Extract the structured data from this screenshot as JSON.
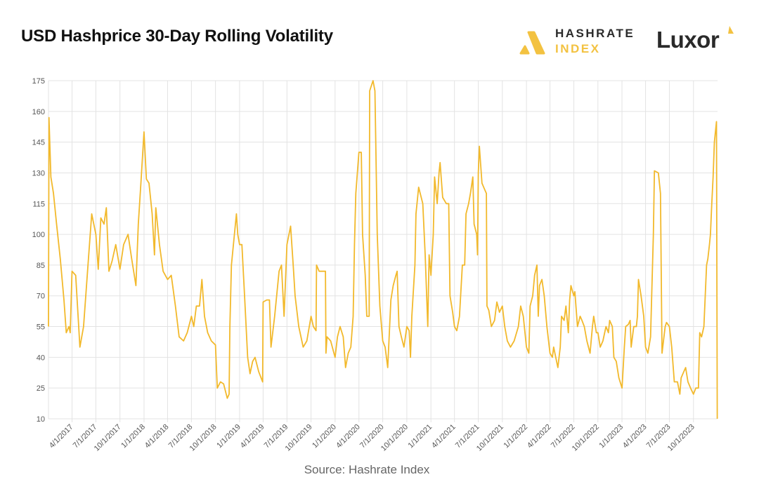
{
  "header": {
    "title": "USD Hashprice 30-Day Rolling Volatility",
    "brand_hashrate_line1": "HASHRATE",
    "brand_hashrate_line2": "INDEX",
    "brand_luxor": "Luxor"
  },
  "footer": {
    "source": "Source: Hashrate Index"
  },
  "colors": {
    "line": "#f2b92c",
    "grid": "#e3e3e3",
    "accent": "#f3c241"
  },
  "chart_data": {
    "type": "line",
    "title": "USD Hashprice 30-Day Rolling Volatility",
    "xlabel": "",
    "ylabel": "",
    "ylim": [
      10,
      175
    ],
    "xlim": [
      "2017-01-01",
      "2024-01-01"
    ],
    "grid": true,
    "legend": "none",
    "y_ticks": [
      "10",
      "25",
      "40",
      "55",
      "70",
      "85",
      "100",
      "115",
      "130",
      "145",
      "160",
      "175"
    ],
    "x_ticks": [
      "4/1/2017",
      "7/1/2017",
      "10/1/2017",
      "1/1/2018",
      "4/1/2018",
      "7/1/2018",
      "10/1/2018",
      "1/1/2019",
      "4/1/2019",
      "7/1/2019",
      "10/1/2019",
      "1/1/2020",
      "4/1/2020",
      "7/1/2020",
      "10/1/2020",
      "1/1/2021",
      "4/1/2021",
      "7/1/2021",
      "10/1/2021",
      "1/1/2022",
      "4/1/2022",
      "7/1/2022",
      "10/1/2022",
      "1/1/2023",
      "4/1/2023",
      "7/1/2023",
      "10/1/2023"
    ],
    "series": [
      {
        "points": [
          [
            "2017-01-01",
            55
          ],
          [
            "2017-01-03",
            157
          ],
          [
            "2017-01-10",
            128
          ],
          [
            "2017-01-20",
            120
          ],
          [
            "2017-02-01",
            105
          ],
          [
            "2017-02-15",
            88
          ],
          [
            "2017-03-01",
            68
          ],
          [
            "2017-03-10",
            52
          ],
          [
            "2017-03-20",
            55
          ],
          [
            "2017-03-25",
            52
          ],
          [
            "2017-04-01",
            82
          ],
          [
            "2017-04-15",
            80
          ],
          [
            "2017-05-01",
            45
          ],
          [
            "2017-05-15",
            55
          ],
          [
            "2017-06-01",
            85
          ],
          [
            "2017-06-15",
            110
          ],
          [
            "2017-07-01",
            100
          ],
          [
            "2017-07-10",
            83
          ],
          [
            "2017-07-20",
            108
          ],
          [
            "2017-08-01",
            105
          ],
          [
            "2017-08-10",
            113
          ],
          [
            "2017-08-20",
            82
          ],
          [
            "2017-09-01",
            87
          ],
          [
            "2017-09-15",
            95
          ],
          [
            "2017-10-01",
            83
          ],
          [
            "2017-10-15",
            95
          ],
          [
            "2017-11-01",
            100
          ],
          [
            "2017-11-15",
            88
          ],
          [
            "2017-12-01",
            75
          ],
          [
            "2017-12-10",
            105
          ],
          [
            "2017-12-20",
            125
          ],
          [
            "2018-01-01",
            150
          ],
          [
            "2018-01-10",
            127
          ],
          [
            "2018-01-20",
            125
          ],
          [
            "2018-02-01",
            110
          ],
          [
            "2018-02-10",
            90
          ],
          [
            "2018-02-15",
            113
          ],
          [
            "2018-03-01",
            95
          ],
          [
            "2018-03-15",
            82
          ],
          [
            "2018-04-01",
            78
          ],
          [
            "2018-04-15",
            80
          ],
          [
            "2018-05-01",
            65
          ],
          [
            "2018-05-15",
            50
          ],
          [
            "2018-06-01",
            48
          ],
          [
            "2018-06-15",
            52
          ],
          [
            "2018-07-01",
            60
          ],
          [
            "2018-07-10",
            55
          ],
          [
            "2018-07-20",
            65
          ],
          [
            "2018-08-01",
            65
          ],
          [
            "2018-08-10",
            78
          ],
          [
            "2018-08-20",
            60
          ],
          [
            "2018-09-01",
            52
          ],
          [
            "2018-09-15",
            48
          ],
          [
            "2018-10-01",
            46
          ],
          [
            "2018-10-08",
            25
          ],
          [
            "2018-10-20",
            28
          ],
          [
            "2018-11-01",
            27
          ],
          [
            "2018-11-15",
            20
          ],
          [
            "2018-11-22",
            22
          ],
          [
            "2018-11-25",
            55
          ],
          [
            "2018-12-01",
            85
          ],
          [
            "2018-12-10",
            97
          ],
          [
            "2018-12-20",
            110
          ],
          [
            "2018-12-25",
            100
          ],
          [
            "2019-01-01",
            95
          ],
          [
            "2019-01-10",
            95
          ],
          [
            "2019-01-20",
            70
          ],
          [
            "2019-02-01",
            40
          ],
          [
            "2019-02-10",
            32
          ],
          [
            "2019-02-20",
            38
          ],
          [
            "2019-03-01",
            40
          ],
          [
            "2019-03-15",
            33
          ],
          [
            "2019-03-30",
            28
          ],
          [
            "2019-04-01",
            67
          ],
          [
            "2019-04-15",
            68
          ],
          [
            "2019-04-25",
            68
          ],
          [
            "2019-05-01",
            45
          ],
          [
            "2019-05-15",
            60
          ],
          [
            "2019-06-01",
            82
          ],
          [
            "2019-06-10",
            85
          ],
          [
            "2019-06-20",
            60
          ],
          [
            "2019-07-01",
            95
          ],
          [
            "2019-07-15",
            104
          ],
          [
            "2019-07-25",
            85
          ],
          [
            "2019-08-01",
            70
          ],
          [
            "2019-08-15",
            55
          ],
          [
            "2019-09-01",
            45
          ],
          [
            "2019-09-15",
            48
          ],
          [
            "2019-10-01",
            60
          ],
          [
            "2019-10-10",
            55
          ],
          [
            "2019-10-20",
            53
          ],
          [
            "2019-10-22",
            85
          ],
          [
            "2019-11-01",
            82
          ],
          [
            "2019-11-15",
            82
          ],
          [
            "2019-11-25",
            82
          ],
          [
            "2019-11-27",
            42
          ],
          [
            "2019-12-01",
            50
          ],
          [
            "2019-12-15",
            48
          ],
          [
            "2020-01-01",
            40
          ],
          [
            "2020-01-10",
            50
          ],
          [
            "2020-01-20",
            55
          ],
          [
            "2020-02-01",
            50
          ],
          [
            "2020-02-10",
            35
          ],
          [
            "2020-02-20",
            42
          ],
          [
            "2020-03-01",
            45
          ],
          [
            "2020-03-10",
            60
          ],
          [
            "2020-03-15",
            95
          ],
          [
            "2020-03-20",
            120
          ],
          [
            "2020-04-01",
            140
          ],
          [
            "2020-04-10",
            140
          ],
          [
            "2020-04-15",
            100
          ],
          [
            "2020-04-25",
            80
          ],
          [
            "2020-05-01",
            60
          ],
          [
            "2020-05-10",
            60
          ],
          [
            "2020-05-12",
            170
          ],
          [
            "2020-05-25",
            175
          ],
          [
            "2020-06-01",
            170
          ],
          [
            "2020-06-10",
            100
          ],
          [
            "2020-06-20",
            65
          ],
          [
            "2020-07-01",
            48
          ],
          [
            "2020-07-10",
            45
          ],
          [
            "2020-07-20",
            35
          ],
          [
            "2020-08-01",
            68
          ],
          [
            "2020-08-10",
            75
          ],
          [
            "2020-08-20",
            80
          ],
          [
            "2020-08-25",
            82
          ],
          [
            "2020-09-01",
            55
          ],
          [
            "2020-09-10",
            50
          ],
          [
            "2020-09-20",
            45
          ],
          [
            "2020-10-01",
            55
          ],
          [
            "2020-10-10",
            53
          ],
          [
            "2020-10-15",
            40
          ],
          [
            "2020-10-20",
            60
          ],
          [
            "2020-11-01",
            85
          ],
          [
            "2020-11-05",
            110
          ],
          [
            "2020-11-15",
            123
          ],
          [
            "2020-12-01",
            115
          ],
          [
            "2020-12-10",
            90
          ],
          [
            "2020-12-20",
            55
          ],
          [
            "2020-12-25",
            90
          ],
          [
            "2021-01-01",
            80
          ],
          [
            "2021-01-10",
            100
          ],
          [
            "2021-01-15",
            128
          ],
          [
            "2021-01-25",
            115
          ],
          [
            "2021-02-01",
            130
          ],
          [
            "2021-02-05",
            135
          ],
          [
            "2021-02-15",
            118
          ],
          [
            "2021-03-01",
            115
          ],
          [
            "2021-03-10",
            115
          ],
          [
            "2021-03-15",
            70
          ],
          [
            "2021-03-25",
            62
          ],
          [
            "2021-04-01",
            55
          ],
          [
            "2021-04-10",
            53
          ],
          [
            "2021-04-20",
            60
          ],
          [
            "2021-05-01",
            85
          ],
          [
            "2021-05-10",
            85
          ],
          [
            "2021-05-15",
            110
          ],
          [
            "2021-05-25",
            115
          ],
          [
            "2021-06-01",
            120
          ],
          [
            "2021-06-10",
            128
          ],
          [
            "2021-06-15",
            105
          ],
          [
            "2021-06-25",
            100
          ],
          [
            "2021-06-28",
            90
          ],
          [
            "2021-07-01",
            130
          ],
          [
            "2021-07-05",
            143
          ],
          [
            "2021-07-15",
            125
          ],
          [
            "2021-07-25",
            122
          ],
          [
            "2021-08-01",
            120
          ],
          [
            "2021-08-03",
            65
          ],
          [
            "2021-08-10",
            63
          ],
          [
            "2021-08-20",
            55
          ],
          [
            "2021-09-01",
            58
          ],
          [
            "2021-09-10",
            67
          ],
          [
            "2021-09-20",
            62
          ],
          [
            "2021-10-01",
            65
          ],
          [
            "2021-10-10",
            55
          ],
          [
            "2021-10-20",
            48
          ],
          [
            "2021-11-01",
            45
          ],
          [
            "2021-11-15",
            48
          ],
          [
            "2021-12-01",
            55
          ],
          [
            "2021-12-10",
            65
          ],
          [
            "2021-12-20",
            60
          ],
          [
            "2022-01-01",
            45
          ],
          [
            "2022-01-10",
            42
          ],
          [
            "2022-01-15",
            65
          ],
          [
            "2022-01-25",
            70
          ],
          [
            "2022-02-01",
            80
          ],
          [
            "2022-02-10",
            85
          ],
          [
            "2022-02-15",
            60
          ],
          [
            "2022-02-20",
            75
          ],
          [
            "2022-03-01",
            78
          ],
          [
            "2022-03-10",
            70
          ],
          [
            "2022-03-20",
            55
          ],
          [
            "2022-04-01",
            42
          ],
          [
            "2022-04-10",
            40
          ],
          [
            "2022-04-15",
            45
          ],
          [
            "2022-05-01",
            35
          ],
          [
            "2022-05-10",
            45
          ],
          [
            "2022-05-15",
            60
          ],
          [
            "2022-05-25",
            58
          ],
          [
            "2022-06-01",
            65
          ],
          [
            "2022-06-10",
            52
          ],
          [
            "2022-06-15",
            68
          ],
          [
            "2022-06-20",
            75
          ],
          [
            "2022-07-01",
            70
          ],
          [
            "2022-07-05",
            72
          ],
          [
            "2022-07-15",
            55
          ],
          [
            "2022-07-25",
            60
          ],
          [
            "2022-08-01",
            58
          ],
          [
            "2022-08-10",
            55
          ],
          [
            "2022-08-20",
            48
          ],
          [
            "2022-09-01",
            42
          ],
          [
            "2022-09-10",
            55
          ],
          [
            "2022-09-15",
            60
          ],
          [
            "2022-09-25",
            52
          ],
          [
            "2022-10-01",
            52
          ],
          [
            "2022-10-10",
            45
          ],
          [
            "2022-10-20",
            48
          ],
          [
            "2022-11-01",
            55
          ],
          [
            "2022-11-10",
            52
          ],
          [
            "2022-11-15",
            58
          ],
          [
            "2022-11-25",
            55
          ],
          [
            "2022-12-01",
            40
          ],
          [
            "2022-12-10",
            38
          ],
          [
            "2022-12-20",
            30
          ],
          [
            "2023-01-01",
            25
          ],
          [
            "2023-01-10",
            45
          ],
          [
            "2023-01-15",
            55
          ],
          [
            "2023-01-25",
            56
          ],
          [
            "2023-02-01",
            58
          ],
          [
            "2023-02-05",
            45
          ],
          [
            "2023-02-15",
            55
          ],
          [
            "2023-02-25",
            55
          ],
          [
            "2023-03-01",
            60
          ],
          [
            "2023-03-05",
            78
          ],
          [
            "2023-03-15",
            70
          ],
          [
            "2023-03-25",
            60
          ],
          [
            "2023-04-01",
            45
          ],
          [
            "2023-04-10",
            42
          ],
          [
            "2023-04-20",
            50
          ],
          [
            "2023-05-01",
            100
          ],
          [
            "2023-05-05",
            131
          ],
          [
            "2023-05-20",
            130
          ],
          [
            "2023-05-28",
            120
          ],
          [
            "2023-06-03",
            42
          ],
          [
            "2023-06-15",
            55
          ],
          [
            "2023-06-20",
            57
          ],
          [
            "2023-07-01",
            55
          ],
          [
            "2023-07-10",
            45
          ],
          [
            "2023-07-20",
            28
          ],
          [
            "2023-08-01",
            28
          ],
          [
            "2023-08-10",
            22
          ],
          [
            "2023-08-15",
            30
          ],
          [
            "2023-08-25",
            33
          ],
          [
            "2023-09-01",
            35
          ],
          [
            "2023-09-10",
            28
          ],
          [
            "2023-09-20",
            25
          ],
          [
            "2023-10-01",
            22
          ],
          [
            "2023-10-10",
            25
          ],
          [
            "2023-10-20",
            25
          ],
          [
            "2023-10-25",
            52
          ],
          [
            "2023-11-01",
            50
          ],
          [
            "2023-11-10",
            55
          ],
          [
            "2023-11-15",
            70
          ],
          [
            "2023-11-20",
            85
          ],
          [
            "2023-11-25",
            88
          ],
          [
            "2023-12-01",
            95
          ],
          [
            "2023-12-05",
            100
          ],
          [
            "2023-12-10",
            115
          ],
          [
            "2023-12-15",
            128
          ],
          [
            "2023-12-20",
            145
          ],
          [
            "2023-12-28",
            155
          ],
          [
            "2023-12-31",
            10
          ]
        ]
      }
    ]
  }
}
